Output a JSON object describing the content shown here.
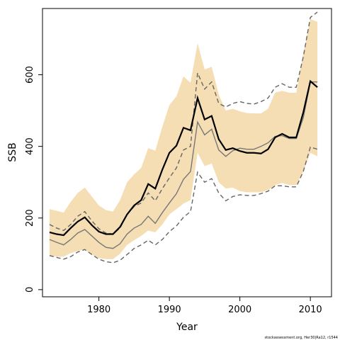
{
  "chart_data": {
    "type": "line",
    "title": "",
    "xlabel": "Year",
    "ylabel": "SSB",
    "xlim": [
      1972,
      2013
    ],
    "ylim": [
      -20,
      785
    ],
    "x_ticks": [
      1980,
      1990,
      2000,
      2010
    ],
    "y_ticks": [
      0,
      200,
      400,
      600
    ],
    "grid": false,
    "legend": "none",
    "x": [
      1973,
      1974,
      1975,
      1976,
      1977,
      1978,
      1979,
      1980,
      1981,
      1982,
      1983,
      1984,
      1985,
      1986,
      1987,
      1988,
      1989,
      1990,
      1991,
      1992,
      1993,
      1994,
      1995,
      1996,
      1997,
      1998,
      1999,
      2000,
      2001,
      2002,
      2003,
      2004,
      2005,
      2006,
      2007,
      2008,
      2009,
      2010,
      2011
    ],
    "series": [
      {
        "role": "estimate",
        "color": "#000000",
        "values": [
          160,
          155,
          152,
          172,
          190,
          202,
          180,
          162,
          155,
          155,
          175,
          210,
          235,
          250,
          295,
          282,
          335,
          382,
          402,
          452,
          445,
          535,
          475,
          485,
          420,
          390,
          395,
          387,
          382,
          382,
          380,
          392,
          425,
          435,
          425,
          425,
          495,
          582,
          565
        ]
      },
      {
        "role": "ci_lower",
        "color": "#f5deb3",
        "values": [
          95,
          92,
          92,
          102,
          108,
          112,
          98,
          88,
          85,
          85,
          100,
          125,
          138,
          150,
          165,
          160,
          182,
          210,
          225,
          240,
          250,
          382,
          345,
          352,
          300,
          282,
          285,
          275,
          272,
          272,
          272,
          278,
          292,
          298,
          292,
          292,
          330,
          382,
          372
        ]
      },
      {
        "role": "ci_upper",
        "color": "#f5deb3",
        "values": [
          225,
          220,
          215,
          245,
          270,
          285,
          260,
          235,
          222,
          218,
          250,
          300,
          322,
          340,
          395,
          388,
          455,
          515,
          540,
          595,
          578,
          688,
          615,
          622,
          545,
          500,
          505,
          498,
          493,
          492,
          492,
          505,
          550,
          555,
          550,
          550,
          660,
          755,
          748
        ]
      },
      {
        "role": "alternative_estimate",
        "color": "#777777",
        "values": [
          140,
          132,
          125,
          140,
          158,
          168,
          150,
          132,
          118,
          115,
          128,
          155,
          172,
          182,
          205,
          185,
          215,
          242,
          268,
          308,
          330,
          468,
          432,
          448,
          390,
          372,
          388,
          395,
          392,
          392,
          400,
          410,
          428,
          430,
          422,
          422,
          480,
          580,
          580
        ]
      },
      {
        "role": "alternative_upper",
        "color": "#666666",
        "values": [
          182,
          172,
          165,
          182,
          205,
          218,
          192,
          170,
          158,
          155,
          172,
          210,
          232,
          242,
          270,
          248,
          282,
          312,
          340,
          390,
          400,
          605,
          560,
          580,
          520,
          510,
          520,
          525,
          520,
          518,
          525,
          535,
          565,
          575,
          565,
          565,
          650,
          760,
          775
        ]
      },
      {
        "role": "alternative_lower",
        "color": "#666666",
        "values": [
          95,
          90,
          85,
          92,
          105,
          112,
          98,
          85,
          78,
          75,
          82,
          98,
          115,
          125,
          138,
          125,
          140,
          162,
          178,
          202,
          218,
          328,
          300,
          310,
          270,
          248,
          260,
          265,
          263,
          263,
          268,
          275,
          290,
          290,
          287,
          287,
          330,
          398,
          392
        ]
      }
    ],
    "annotations": [
      "stockassessment.org, Her30|Ra12, r1544"
    ]
  }
}
